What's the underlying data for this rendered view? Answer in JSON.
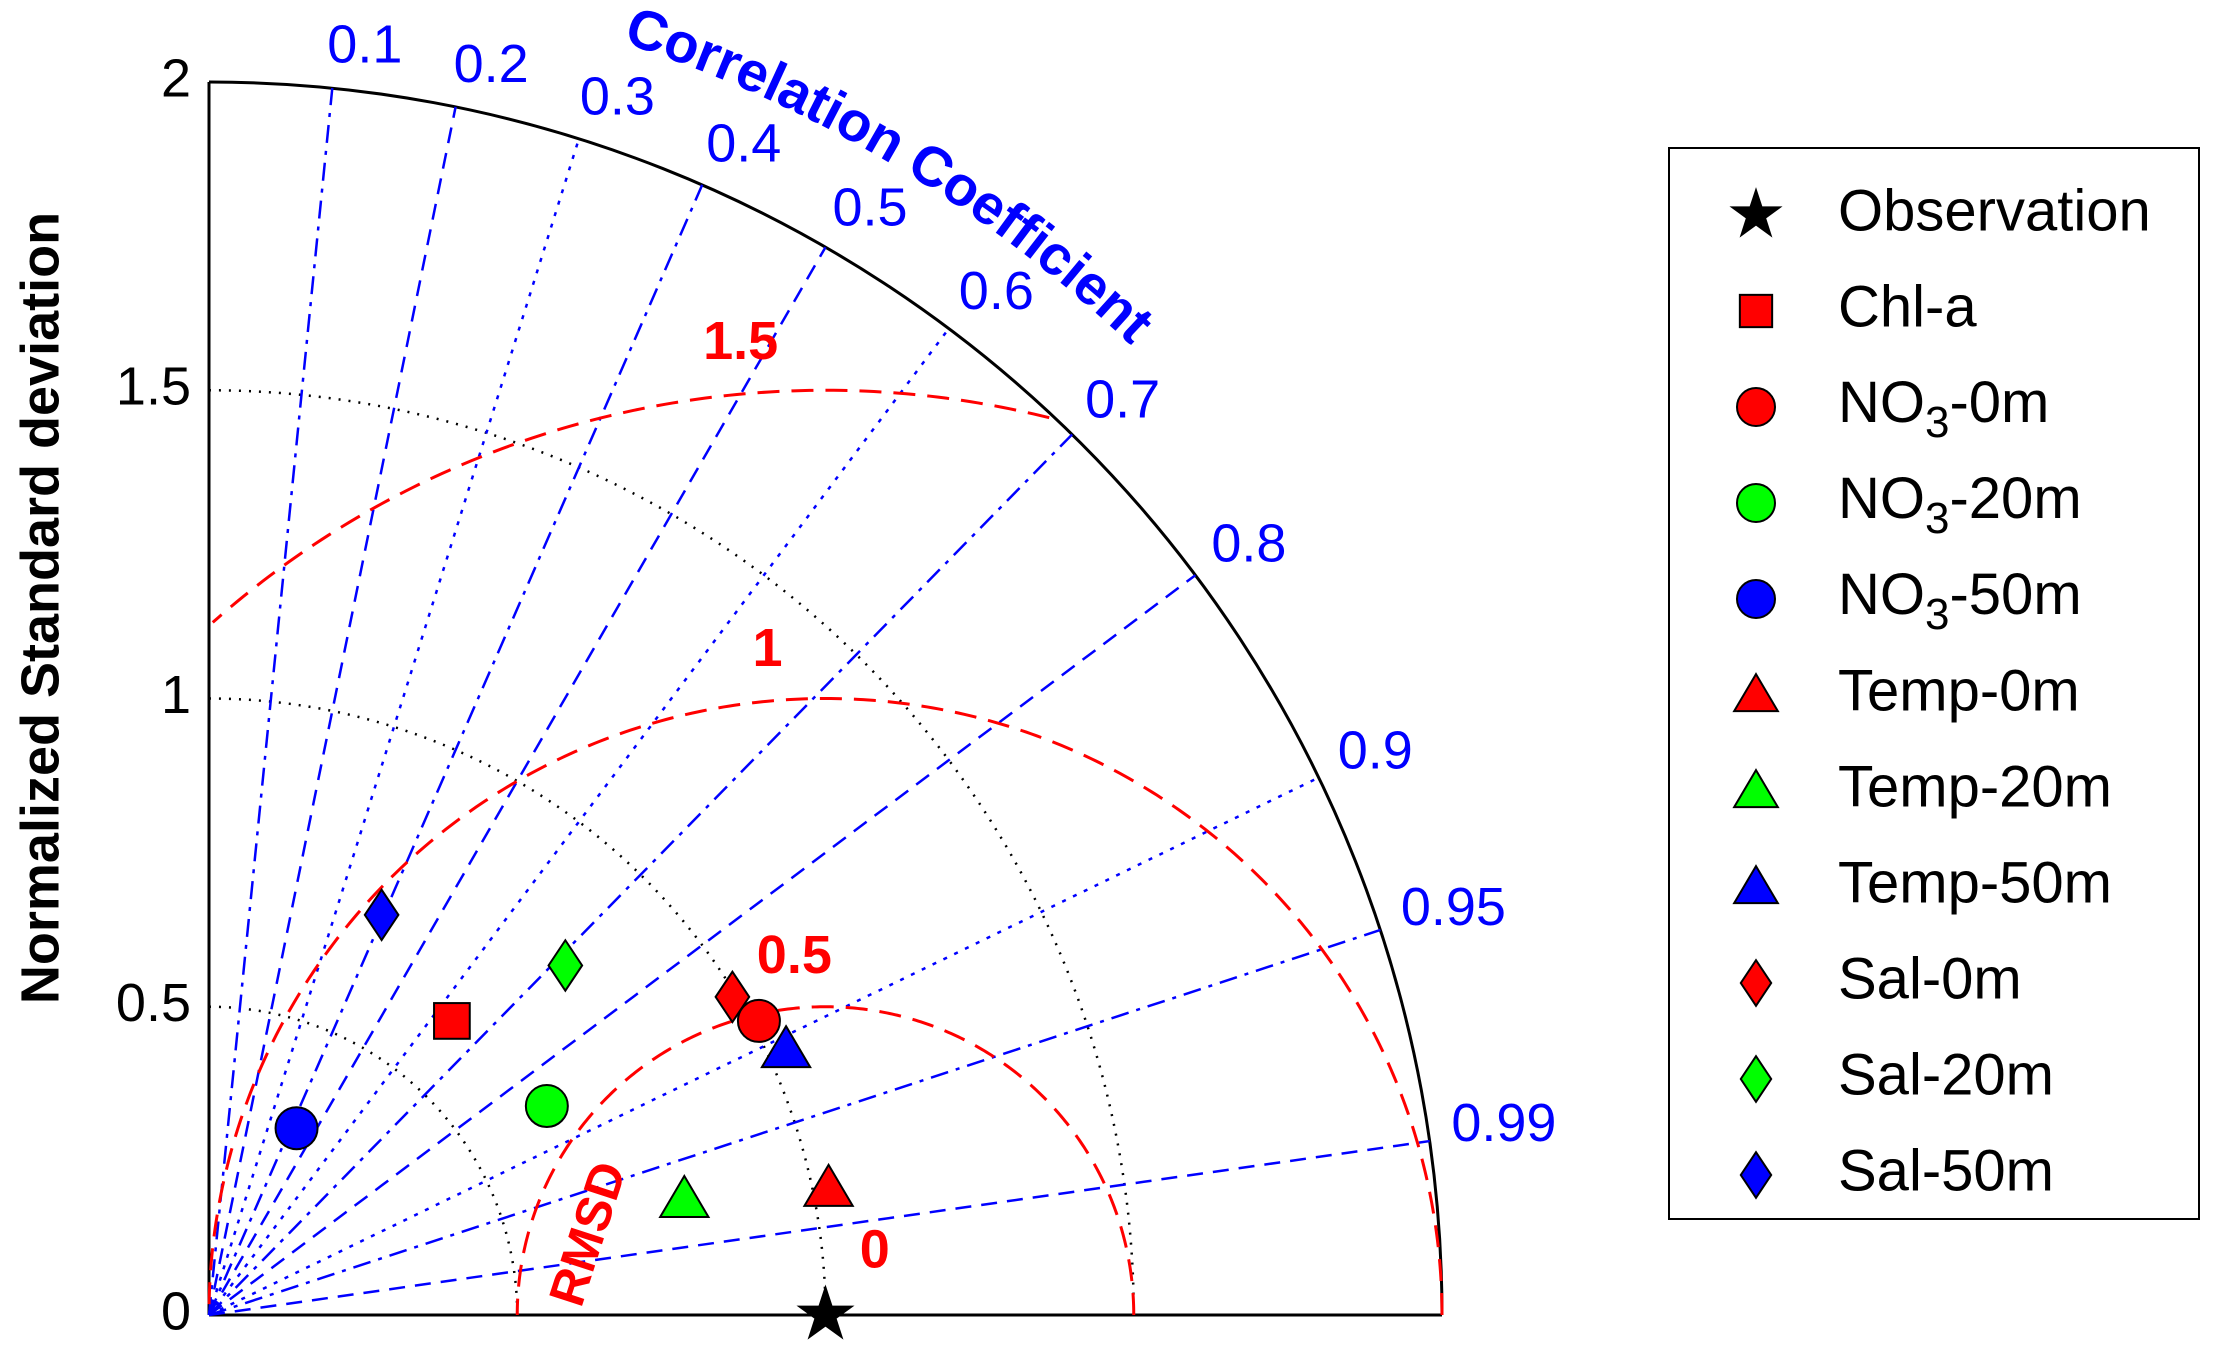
{
  "chart_data": {
    "type": "taylor",
    "ylabel": "Normalized Standard deviation",
    "ylim": [
      0,
      2
    ],
    "yticks": [
      0,
      0.5,
      1,
      1.5,
      2
    ],
    "correlation_label": "Correlation Coefficient",
    "correlation_ticks": [
      0.1,
      0.2,
      0.3,
      0.4,
      0.5,
      0.6,
      0.7,
      0.8,
      0.9,
      0.95,
      0.99
    ],
    "rmsd_label": "RMSD",
    "rmsd_ticks": [
      0,
      0.5,
      1,
      1.5
    ],
    "series": [
      {
        "name": "Observation",
        "marker": "star",
        "color": "#000000",
        "x": [
          1.0
        ],
        "values": [
          0.0
        ]
      },
      {
        "name": "Chl-a",
        "marker": "square",
        "color": "#ff0000",
        "x": [
          0.394
        ],
        "values": [
          0.477
        ]
      },
      {
        "name": "NO3-0m",
        "marker": "circle",
        "color": "#ff0000",
        "x": [
          0.892
        ],
        "values": [
          0.477
        ]
      },
      {
        "name": "NO3-20m",
        "marker": "circle",
        "color": "#00ff00",
        "x": [
          0.548
        ],
        "values": [
          0.339
        ]
      },
      {
        "name": "NO3-50m",
        "marker": "circle",
        "color": "#0000ff",
        "x": [
          0.142
        ],
        "values": [
          0.303
        ]
      },
      {
        "name": "Temp-0m",
        "marker": "triangle",
        "color": "#ff0000",
        "x": [
          1.005
        ],
        "values": [
          0.206
        ]
      },
      {
        "name": "Temp-20m",
        "marker": "triangle",
        "color": "#00ff00",
        "x": [
          0.771
        ],
        "values": [
          0.188
        ]
      },
      {
        "name": "Temp-50m",
        "marker": "triangle",
        "color": "#0000ff",
        "x": [
          0.936
        ],
        "values": [
          0.431
        ]
      },
      {
        "name": "Sal-0m",
        "marker": "diamond",
        "color": "#ff0000",
        "x": [
          0.849
        ],
        "values": [
          0.516
        ]
      },
      {
        "name": "Sal-20m",
        "marker": "diamond",
        "color": "#00ff00",
        "x": [
          0.578
        ],
        "values": [
          0.567
        ]
      },
      {
        "name": "Sal-50m",
        "marker": "diamond",
        "color": "#0000ff",
        "x": [
          0.28
        ],
        "values": [
          0.649
        ]
      }
    ]
  }
}
